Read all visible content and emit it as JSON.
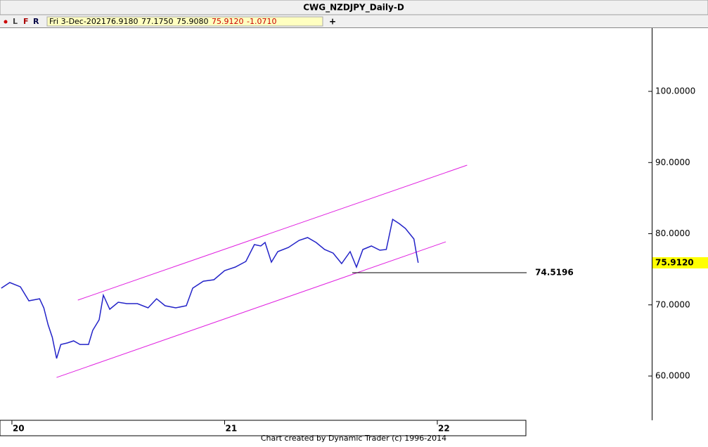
{
  "header": {
    "info_date": "Fri 3-Dec-2021",
    "info_open": "76.9180",
    "info_high": "77.1750",
    "info_low": "75.9080",
    "info_close": "75.9120",
    "info_change": "-1.0710",
    "tool_l": "L",
    "tool_f": "F",
    "tool_r": "R",
    "plus": "+"
  },
  "footer": "Chart created by Dynamic Trader  (c) 1996-2014",
  "chart_data": {
    "type": "line",
    "title": "CWG_NZDJPY_Daily-D",
    "x": [
      19.95,
      19.99,
      20.04,
      20.08,
      20.13,
      20.15,
      20.17,
      20.19,
      20.21,
      20.23,
      20.26,
      20.29,
      20.32,
      20.36,
      20.38,
      20.41,
      20.43,
      20.46,
      20.5,
      20.54,
      20.59,
      20.64,
      20.68,
      20.72,
      20.77,
      20.82,
      20.85,
      20.9,
      20.95,
      21.0,
      21.05,
      21.1,
      21.14,
      21.17,
      21.19,
      21.22,
      21.25,
      21.3,
      21.35,
      21.39,
      21.43,
      21.47,
      21.51,
      21.55,
      21.59,
      21.62,
      21.65,
      21.69,
      21.73,
      21.76,
      21.79,
      21.82,
      21.85,
      21.89,
      21.9,
      21.91
    ],
    "series": [
      {
        "color": "#2323c8",
        "values": [
          72.35,
          73.14,
          72.54,
          70.57,
          70.86,
          69.58,
          67.21,
          65.43,
          62.47,
          64.44,
          64.64,
          64.94,
          64.44,
          64.44,
          66.42,
          67.9,
          71.36,
          69.38,
          70.37,
          70.17,
          70.17,
          69.58,
          70.86,
          69.88,
          69.58,
          69.88,
          72.35,
          73.33,
          73.53,
          74.81,
          75.31,
          76.1,
          78.47,
          78.27,
          78.77,
          76.0,
          77.48,
          78.07,
          79.06,
          79.46,
          78.77,
          77.78,
          77.28,
          75.8,
          77.48,
          75.31,
          77.78,
          78.27,
          77.68,
          77.78,
          82.02,
          81.43,
          80.74,
          79.26,
          77.48,
          75.91
        ]
      }
    ],
    "xlim": [
      19.944,
      22.985
    ],
    "ylim": [
      53.78,
      108.89
    ],
    "xticks": [
      20,
      21,
      22
    ],
    "yticks": [
      {
        "value": 60,
        "label": "60.0000"
      },
      {
        "value": 70,
        "label": "70.0000"
      },
      {
        "value": 80,
        "label": "80.0000"
      },
      {
        "value": 90,
        "label": "90.0000"
      },
      {
        "value": 100,
        "label": "100.0000"
      }
    ],
    "channel": {
      "color": "#e020e0",
      "lines": [
        {
          "x": [
            20.31,
            22.14
          ],
          "y": [
            70.67,
            89.63
          ]
        },
        {
          "x": [
            20.21,
            22.04
          ],
          "y": [
            59.8,
            78.86
          ]
        }
      ]
    },
    "level": {
      "value": 74.5196,
      "x": [
        21.6,
        22.42
      ]
    },
    "last_price": {
      "value": 75.912,
      "label": "75.9120"
    }
  }
}
